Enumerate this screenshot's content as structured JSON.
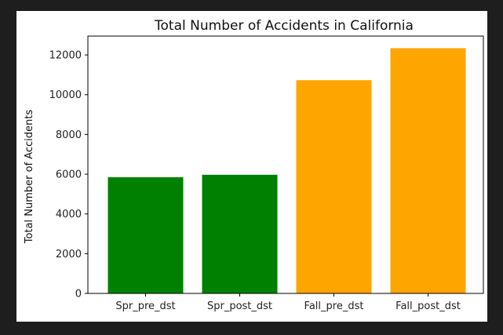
{
  "chart_data": {
    "type": "bar",
    "title": "Total Number of Accidents in California",
    "xlabel": "",
    "ylabel": "Total Number of Accidents",
    "categories": [
      "Spr_pre_dst",
      "Spr_post_dst",
      "Fall_pre_dst",
      "Fall_post_dst"
    ],
    "values": [
      5850,
      5970,
      10730,
      12340
    ],
    "colors": [
      "#008000",
      "#008000",
      "#FFA500",
      "#FFA500"
    ],
    "ylim": [
      0,
      12950
    ],
    "yticks": [
      0,
      2000,
      4000,
      6000,
      8000,
      10000,
      12000
    ],
    "grid": false,
    "legend": false
  },
  "colors": {
    "background": "#1e1e1e",
    "plot_background": "#ffffff"
  }
}
